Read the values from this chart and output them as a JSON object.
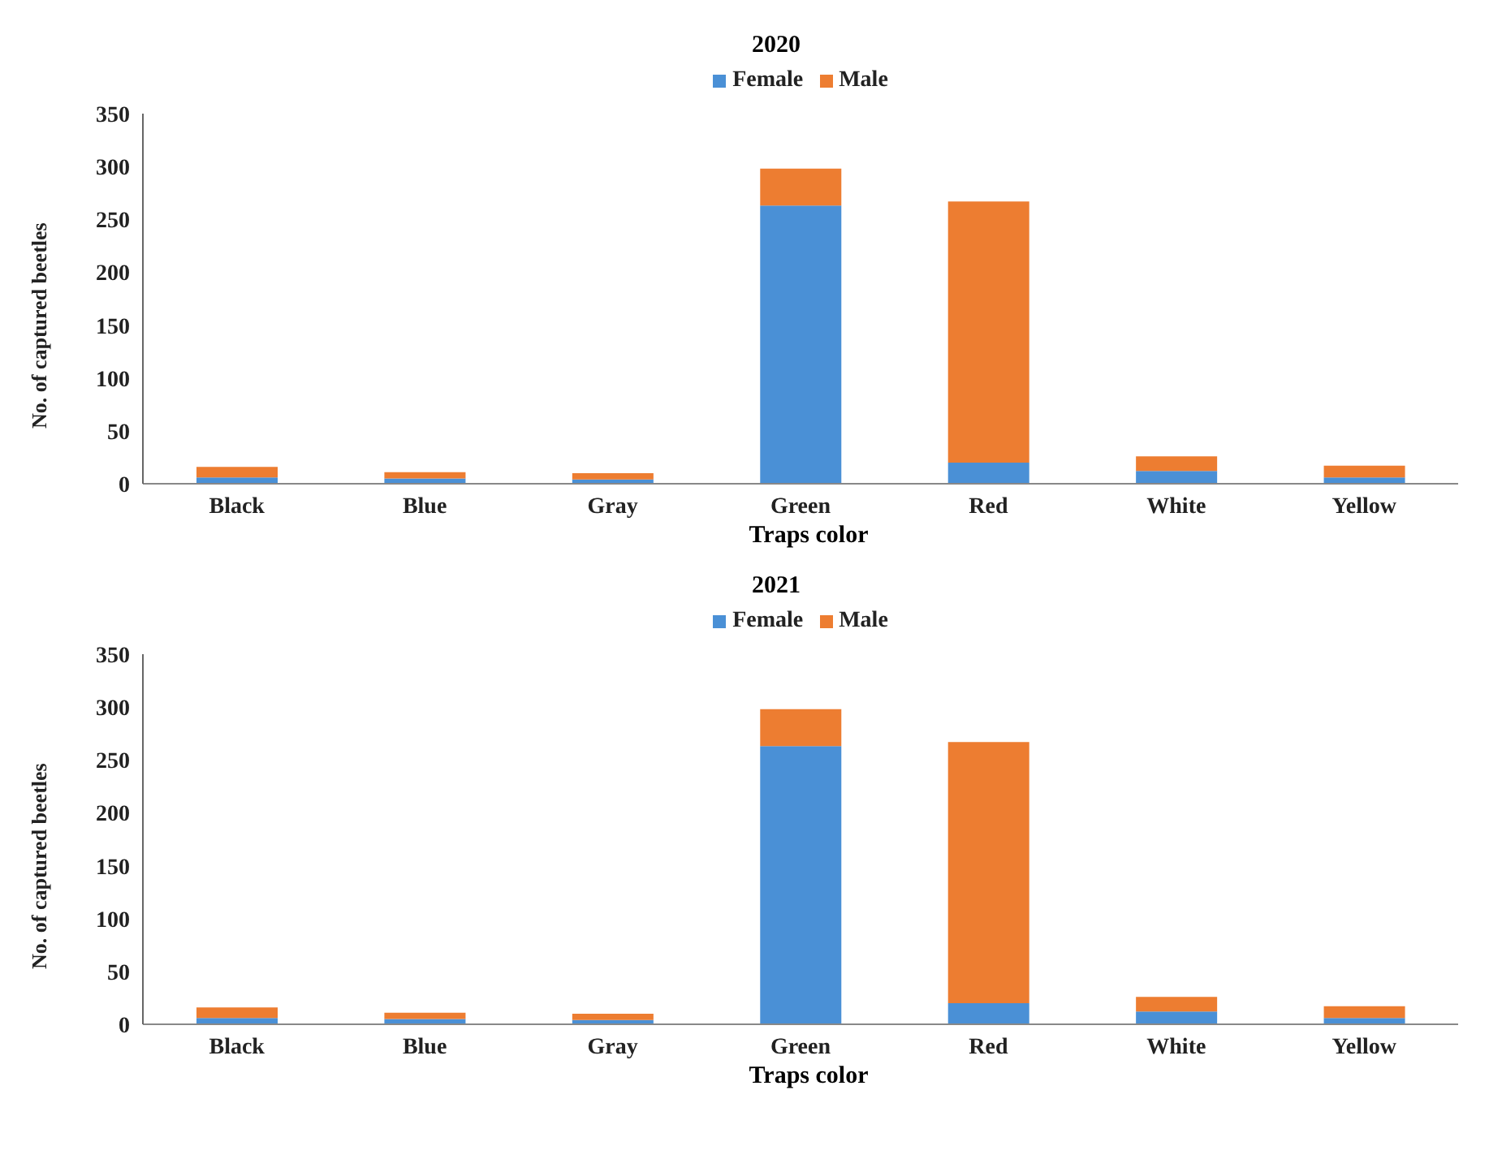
{
  "chart_data": [
    {
      "type": "bar",
      "title": "2020",
      "xlabel": "Traps color",
      "ylabel": "No. of captured beetles",
      "categories": [
        "Black",
        "Blue",
        "Gray",
        "Green",
        "Red",
        "White",
        "Yellow"
      ],
      "stacked": true,
      "legend": "top",
      "grid": false,
      "ylim": [
        0,
        350
      ],
      "yticks": [
        0,
        50,
        100,
        150,
        200,
        250,
        300,
        350
      ],
      "series": [
        {
          "name": "Female",
          "color": "#4a90d6",
          "values": [
            6,
            5,
            4,
            263,
            20,
            12,
            6
          ]
        },
        {
          "name": "Male",
          "color": "#ed7d31",
          "values": [
            10,
            6,
            6,
            35,
            247,
            14,
            11
          ]
        }
      ]
    },
    {
      "type": "bar",
      "title": "2021",
      "xlabel": "Traps color",
      "ylabel": "No. of captured beetles",
      "categories": [
        "Black",
        "Blue",
        "Gray",
        "Green",
        "Red",
        "White",
        "Yellow"
      ],
      "stacked": true,
      "legend": "top",
      "grid": false,
      "ylim": [
        0,
        350
      ],
      "yticks": [
        0,
        50,
        100,
        150,
        200,
        250,
        300,
        350
      ],
      "series": [
        {
          "name": "Female",
          "color": "#4a90d6",
          "values": [
            6,
            5,
            4,
            263,
            20,
            12,
            6
          ]
        },
        {
          "name": "Male",
          "color": "#ed7d31",
          "values": [
            10,
            6,
            6,
            35,
            247,
            14,
            11
          ]
        }
      ]
    }
  ]
}
